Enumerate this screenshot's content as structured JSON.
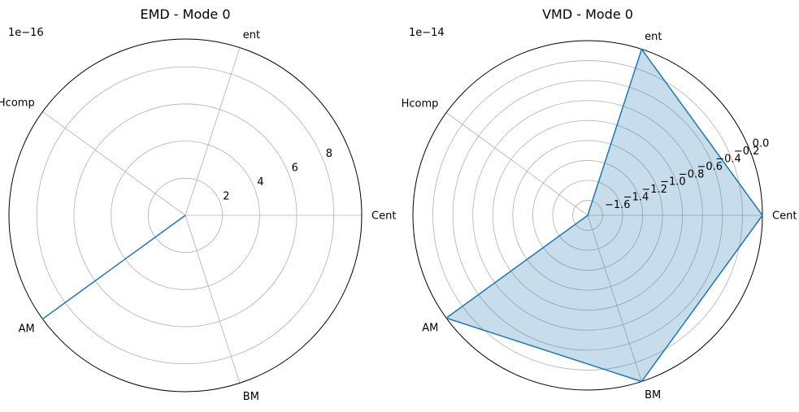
{
  "chart_data": [
    {
      "type": "radar",
      "title": "EMD - Mode 0",
      "offset_text": "1e−16",
      "categories": [
        "Cent",
        "ent",
        "Hcomp",
        "AM",
        "BM"
      ],
      "values": [
        0,
        0,
        0,
        9.5,
        0
      ],
      "rlim": [
        0,
        9.5
      ],
      "radial_ticks": [
        2,
        4,
        6,
        8
      ],
      "radial_tick_labels": [
        "2",
        "4",
        "6",
        "8"
      ],
      "grid": true,
      "filled": false,
      "line_color": "#1f77b4",
      "fill_color": "#1f77b4"
    },
    {
      "type": "radar",
      "title": "VMD - Mode 0",
      "offset_text": "1e−14",
      "categories": [
        "Cent",
        "ent",
        "Hcomp",
        "AM",
        "BM"
      ],
      "values": [
        0,
        0,
        -1.75,
        0,
        0
      ],
      "rlim": [
        -1.75,
        0
      ],
      "radial_ticks": [
        -1.6,
        -1.4,
        -1.2,
        -1.0,
        -0.8,
        -0.6,
        -0.4,
        -0.2,
        0.0
      ],
      "radial_tick_labels": [
        "−1.6",
        "−1.4",
        "−1.2",
        "−1.0",
        "−0.8",
        "−0.6",
        "−0.4",
        "−0.2",
        "0.0"
      ],
      "grid": true,
      "filled": true,
      "line_color": "#1f77b4",
      "fill_color": "#1f77b4"
    }
  ]
}
